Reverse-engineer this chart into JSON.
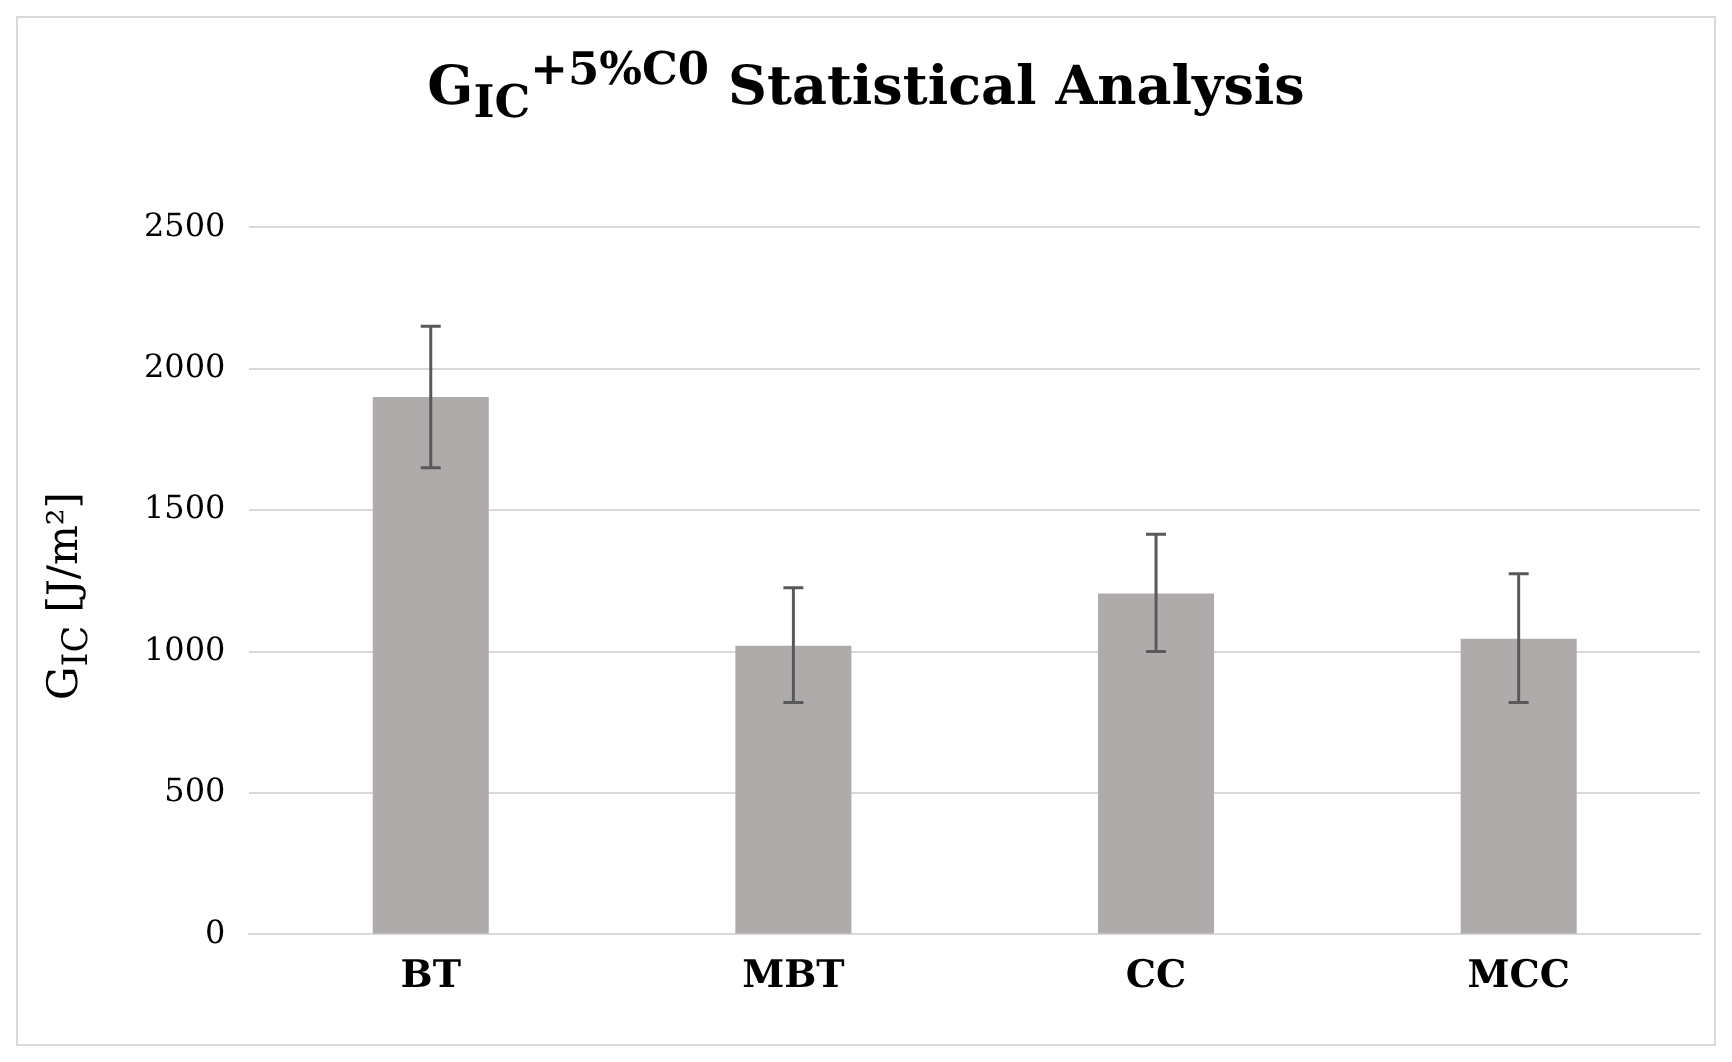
{
  "chart_data": {
    "type": "bar",
    "title": "G$_{IC}$$^{+5%C0}$ Statistical Analysis",
    "ylabel": "G$_{IC}$ [J/m²]",
    "categories": [
      "BT",
      "MBT",
      "CC",
      "MCC"
    ],
    "values": [
      1900,
      1020,
      1205,
      1045
    ],
    "errors": [
      [
        1650,
        2150
      ],
      [
        820,
        1225
      ],
      [
        1000,
        1415
      ],
      [
        820,
        1275
      ]
    ],
    "color": "#aeabaa",
    "ylim": [
      0,
      2500
    ],
    "yticks": [
      0,
      500,
      1000,
      1500,
      2000,
      2500
    ],
    "grid": "y",
    "legend": false
  }
}
